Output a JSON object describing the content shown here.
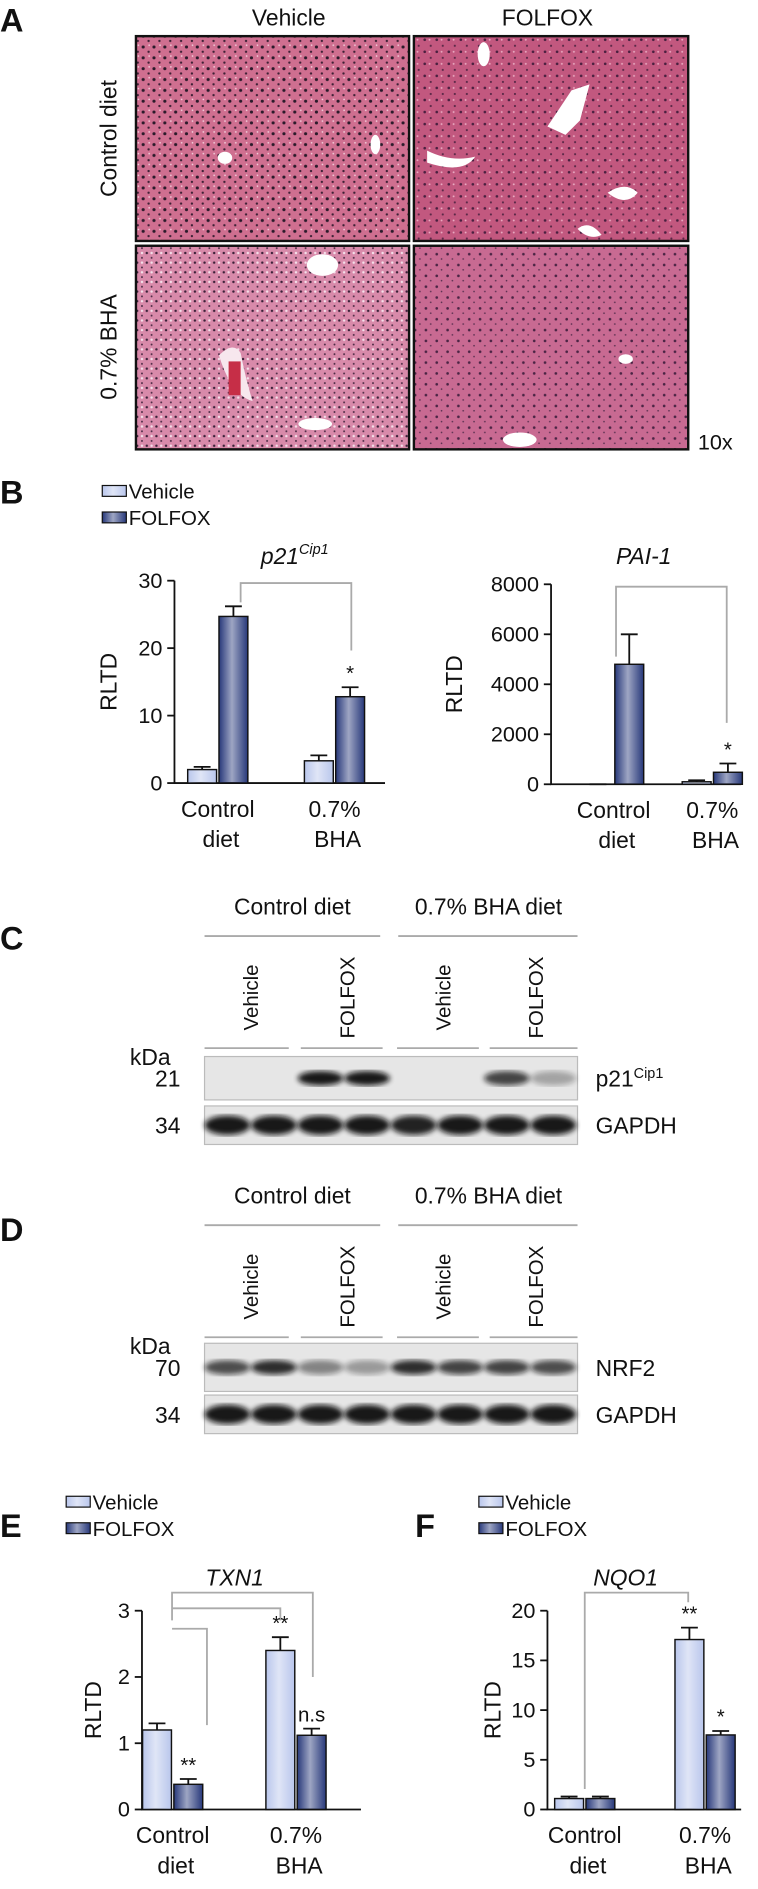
{
  "panel_labels": [
    "A",
    "B",
    "C",
    "D",
    "E",
    "F"
  ],
  "histology": {
    "columns": [
      "Vehicle",
      "FOLFOX"
    ],
    "rows": [
      "Control diet",
      "0.7% BHA"
    ],
    "magnification": "10x"
  },
  "blots": [
    {
      "groups": [
        "Control diet",
        "0.7% BHA diet"
      ],
      "lanes": [
        "Vehicle",
        "FOLFOX",
        "Vehicle",
        "FOLFOX"
      ],
      "unit": "kDa",
      "rows": [
        {
          "size": 21,
          "label": "p21",
          "label_superscript": "Cip1"
        },
        {
          "size": 34,
          "label": "GAPDH"
        }
      ]
    },
    {
      "groups": [
        "Control diet",
        "0.7% BHA diet"
      ],
      "lanes": [
        "Vehicle",
        "FOLFOX",
        "Vehicle",
        "FOLFOX"
      ],
      "unit": "kDa",
      "rows": [
        {
          "size": 70,
          "label": "NRF2"
        },
        {
          "size": 34,
          "label": "GAPDH"
        }
      ]
    }
  ],
  "chart_data": [
    {
      "type": "bar",
      "title": "p21",
      "title_superscript": "Cip1",
      "ylabel": "RLTD",
      "legend": true,
      "categories": [
        "Control diet",
        "0.7% BHA"
      ],
      "series": [
        {
          "name": "Vehicle",
          "color": "#b9c6ec",
          "values": [
            2,
            3.3
          ],
          "errors": [
            0.4,
            0.8
          ],
          "annotations": [
            null,
            null
          ]
        },
        {
          "name": "FOLFOX",
          "color": "#27387a",
          "values": [
            24.7,
            12.8
          ],
          "errors": [
            1.5,
            1.4
          ],
          "annotations": [
            null,
            "*"
          ]
        }
      ],
      "ylim": [
        0,
        30
      ],
      "yticks": [
        0,
        10,
        20,
        30
      ]
    },
    {
      "type": "bar",
      "title": "PAI-1",
      "ylabel": "RLTD",
      "legend": false,
      "categories": [
        "Control diet",
        "0.7% BHA"
      ],
      "series": [
        {
          "name": "Vehicle",
          "color": "#b9c6ec",
          "values": [
            0,
            100
          ],
          "errors": [
            0,
            60
          ],
          "annotations": [
            null,
            null
          ]
        },
        {
          "name": "FOLFOX",
          "color": "#27387a",
          "values": [
            4800,
            480
          ],
          "errors": [
            1200,
            350
          ],
          "annotations": [
            null,
            "*"
          ]
        }
      ],
      "ylim": [
        0,
        8000
      ],
      "yticks": [
        0,
        2000,
        4000,
        6000,
        8000
      ]
    },
    {
      "type": "bar",
      "title": "TXN1",
      "ylabel": "RLTD",
      "legend": true,
      "categories": [
        "Control diet",
        "0.7% BHA"
      ],
      "series": [
        {
          "name": "Vehicle",
          "color": "#b9c6ec",
          "values": [
            1.2,
            2.4
          ],
          "errors": [
            0.1,
            0.2
          ],
          "annotations": [
            null,
            "**"
          ]
        },
        {
          "name": "FOLFOX",
          "color": "#27387a",
          "values": [
            0.38,
            1.12
          ],
          "errors": [
            0.08,
            0.1
          ],
          "annotations": [
            "**",
            "n.s"
          ]
        }
      ],
      "ylim": [
        0,
        3
      ],
      "yticks": [
        0,
        1,
        2,
        3
      ]
    },
    {
      "type": "bar",
      "title": "NQO1",
      "ylabel": "RLTD",
      "legend": true,
      "categories": [
        "Control diet",
        "0.7% BHA"
      ],
      "series": [
        {
          "name": "Vehicle",
          "color": "#b9c6ec",
          "values": [
            1.1,
            17.1
          ],
          "errors": [
            0.2,
            1.2
          ],
          "annotations": [
            null,
            "**"
          ]
        },
        {
          "name": "FOLFOX",
          "color": "#27387a",
          "values": [
            1.1,
            7.5
          ],
          "errors": [
            0.2,
            0.4
          ],
          "annotations": [
            null,
            "*"
          ]
        }
      ],
      "ylim": [
        0,
        20
      ],
      "yticks": [
        0,
        5,
        10,
        15,
        20
      ]
    }
  ]
}
